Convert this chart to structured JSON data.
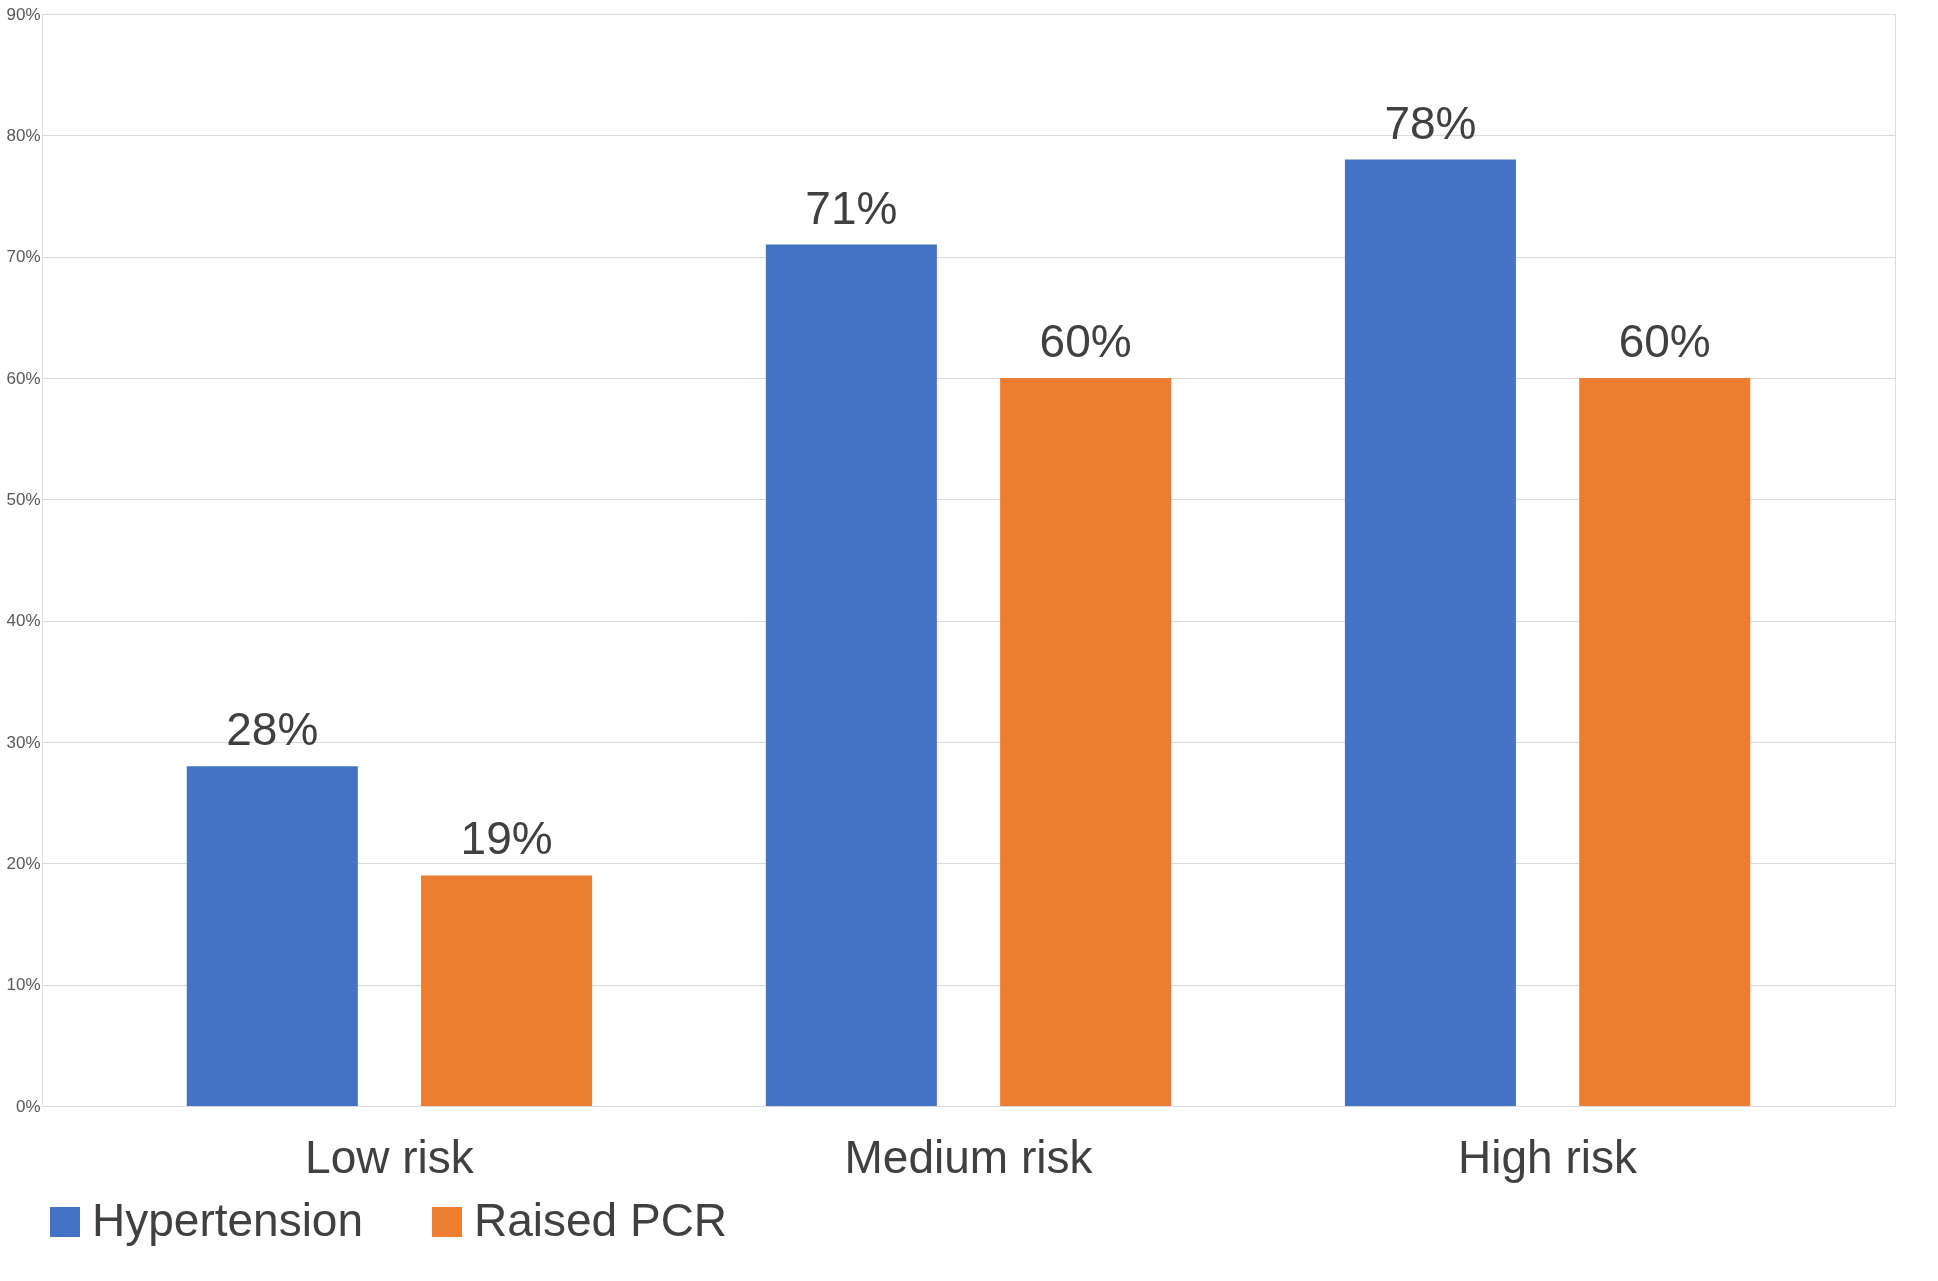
{
  "chart_data": {
    "type": "bar",
    "categories": [
      "Low risk",
      "Medium risk",
      "High risk"
    ],
    "series": [
      {
        "name": "Hypertension",
        "color": "#4472c4",
        "values": [
          28,
          71,
          78
        ],
        "value_labels": [
          "28%",
          "71%",
          "78%"
        ]
      },
      {
        "name": "Raised PCR",
        "color": "#ed7d31",
        "values": [
          19,
          60,
          60
        ],
        "value_labels": [
          "19%",
          "60%",
          "60%"
        ]
      }
    ],
    "ylim": [
      0,
      90
    ],
    "yticks": [
      {
        "value": 0,
        "label": "0%"
      },
      {
        "value": 10,
        "label": "10%"
      },
      {
        "value": 20,
        "label": "20%"
      },
      {
        "value": 30,
        "label": "30%"
      },
      {
        "value": 40,
        "label": "40%"
      },
      {
        "value": 50,
        "label": "50%"
      },
      {
        "value": 60,
        "label": "60%"
      },
      {
        "value": 70,
        "label": "70%"
      },
      {
        "value": 80,
        "label": "80%"
      },
      {
        "value": 90,
        "label": "90%"
      }
    ],
    "grid": "y",
    "legend": "bottom"
  }
}
